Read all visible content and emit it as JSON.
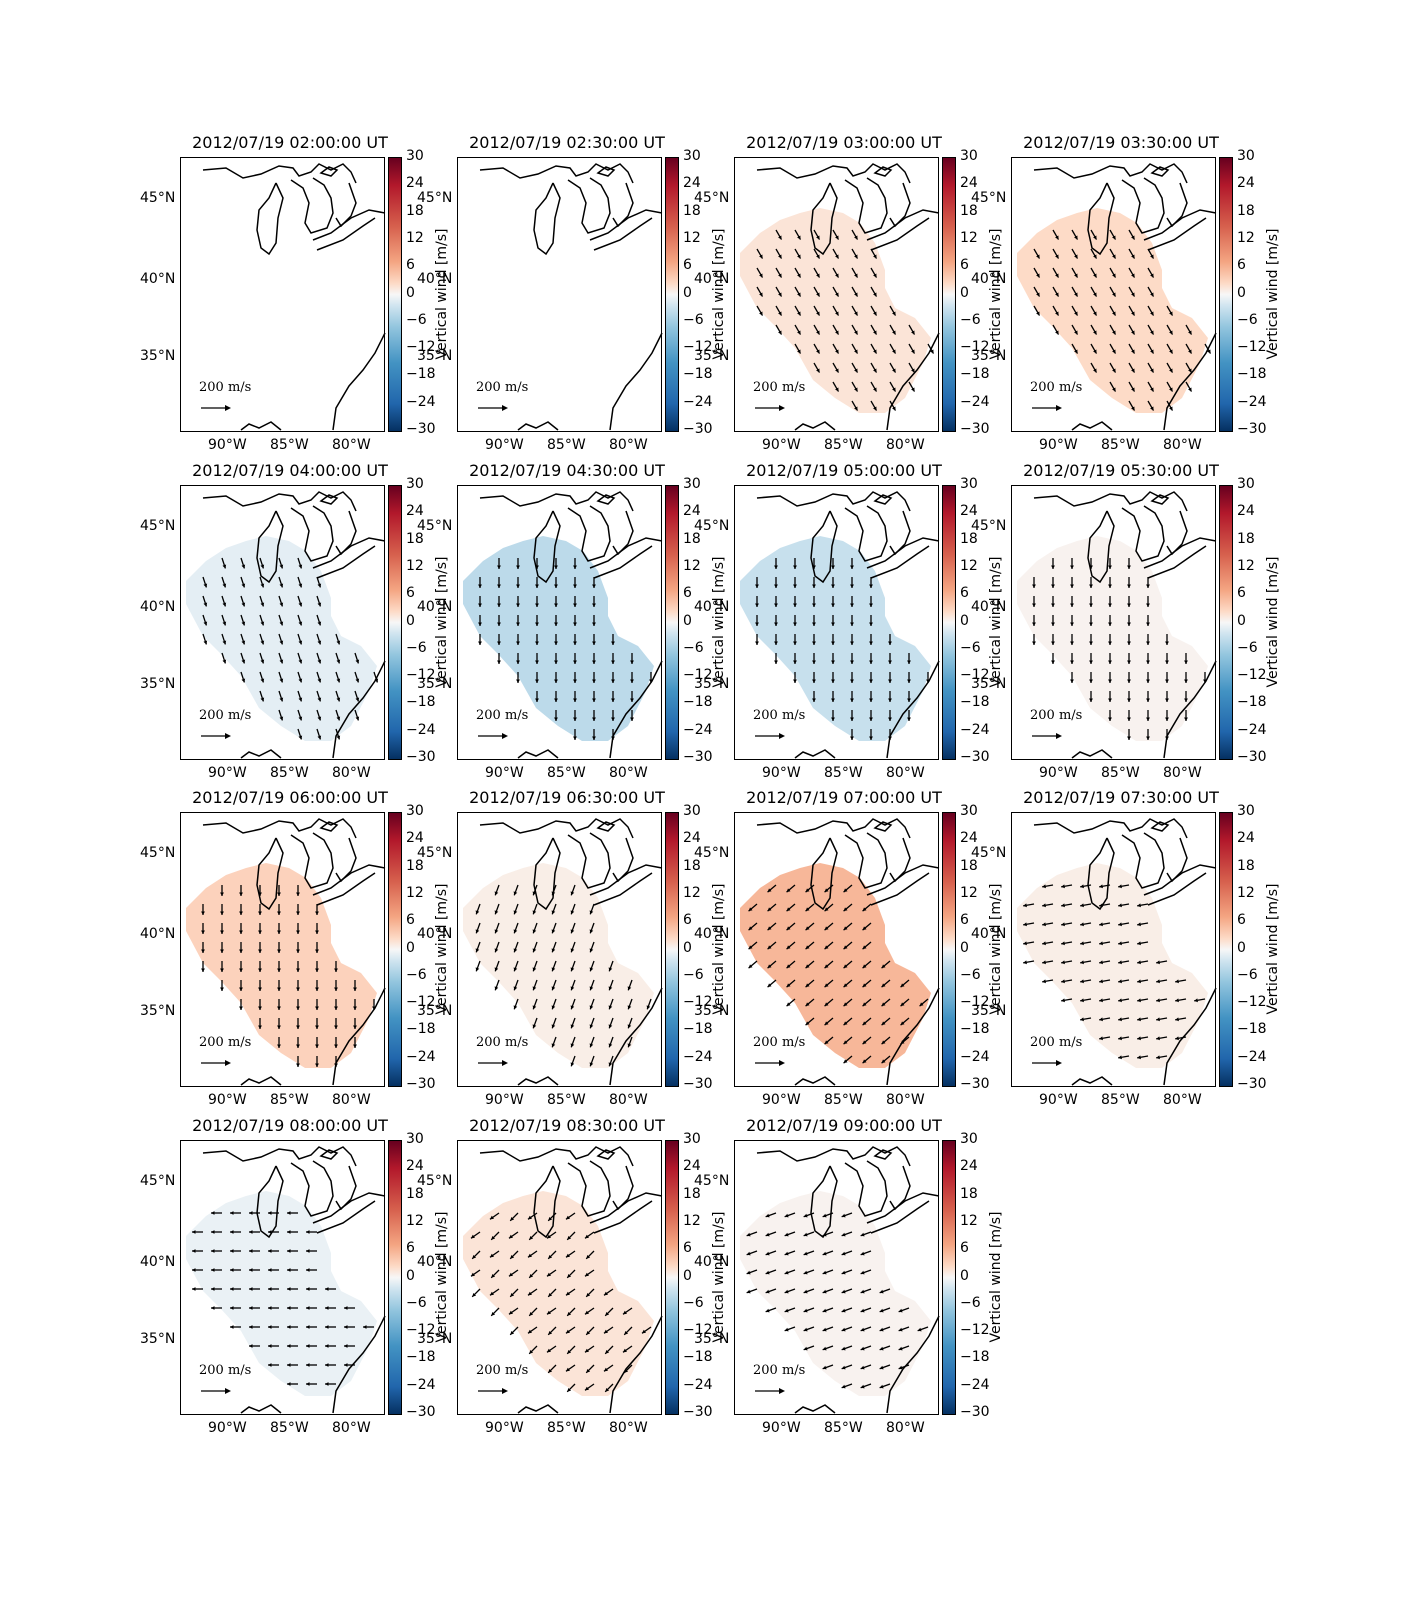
{
  "figure": {
    "colorbar": {
      "label": "Vertical wind [m/s]",
      "ticks": [
        "30",
        "24",
        "18",
        "12",
        "6",
        "0",
        "−6",
        "−12",
        "−18",
        "−24",
        "−30"
      ],
      "colormap": "RdBu_r"
    },
    "axes": {
      "lat_ticks": [
        "45°N",
        "40°N",
        "35°N"
      ],
      "lon_ticks": [
        "90°W",
        "85°W",
        "80°W"
      ]
    },
    "quiver_key": "200 m/s",
    "panels": [
      {
        "title": "2012/07/19 02:00:00 UT",
        "value": 0
      },
      {
        "title": "2012/07/19 02:30:00 UT",
        "value": 0
      },
      {
        "title": "2012/07/19 03:00:00 UT",
        "value": 4
      },
      {
        "title": "2012/07/19 03:30:00 UT",
        "value": 6
      },
      {
        "title": "2012/07/19 04:00:00 UT",
        "value": -3
      },
      {
        "title": "2012/07/19 04:30:00 UT",
        "value": -8
      },
      {
        "title": "2012/07/19 05:00:00 UT",
        "value": -7
      },
      {
        "title": "2012/07/19 05:30:00 UT",
        "value": 1
      },
      {
        "title": "2012/07/19 06:00:00 UT",
        "value": 7
      },
      {
        "title": "2012/07/19 06:30:00 UT",
        "value": 2
      },
      {
        "title": "2012/07/19 07:00:00 UT",
        "value": 10
      },
      {
        "title": "2012/07/19 07:30:00 UT",
        "value": 2
      },
      {
        "title": "2012/07/19 08:00:00 UT",
        "value": -2
      },
      {
        "title": "2012/07/19 08:30:00 UT",
        "value": 4
      },
      {
        "title": "2012/07/19 09:00:00 UT",
        "value": 1
      }
    ]
  }
}
